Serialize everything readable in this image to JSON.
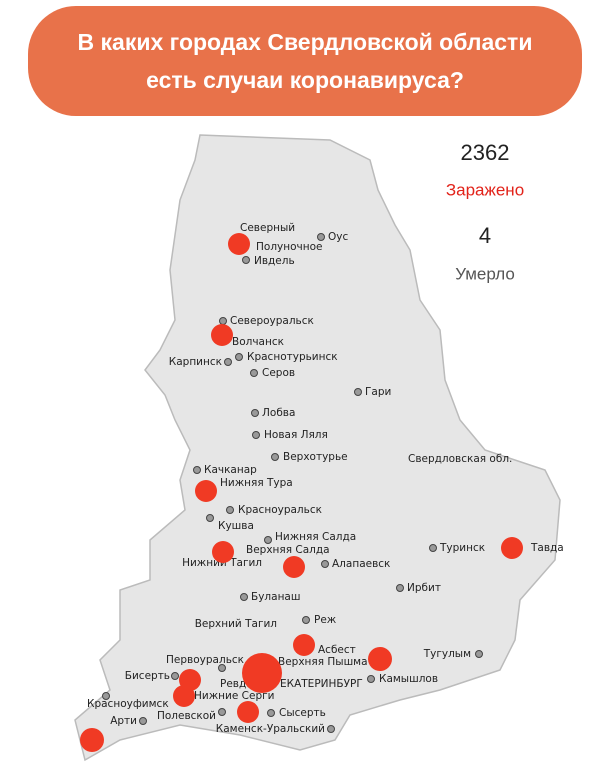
{
  "header": {
    "title_lines": [
      "В каких городах Свердловской области",
      "есть случаи коронавируса?"
    ]
  },
  "stats": {
    "infected": {
      "value": 2362,
      "label": "Заражено"
    },
    "deaths": {
      "value": 4,
      "label": "Умерло"
    }
  },
  "region_label": "Свердловская обл.",
  "cities": [
    "Северный",
    "Полуночное",
    "Ивдель",
    "Оус",
    "Североуральск",
    "Волчанск",
    "Карпинск",
    "Краснотурьинск",
    "Серов",
    "Гари",
    "Лобва",
    "Новая Ляля",
    "Верхотурье",
    "Качканар",
    "Нижняя Тура",
    "Красноуральск",
    "Кушва",
    "Нижняя Салда",
    "Верхняя Салда",
    "Нижний Тагил",
    "Алапаевск",
    "Туринск",
    "Тавда",
    "Ирбит",
    "Буланаш",
    "Реж",
    "Верхний Тагил",
    "Асбест",
    "Тугулым",
    "Первоуральск",
    "Верхняя Пышма",
    "Бисерть",
    "Ревда",
    "ЕКАТЕРИНБУРГ",
    "Камышлов",
    "Нижние Серги",
    "Красноуфимск",
    "Арти",
    "Полевской",
    "Сысерть",
    "Каменск-Уральский"
  ]
}
